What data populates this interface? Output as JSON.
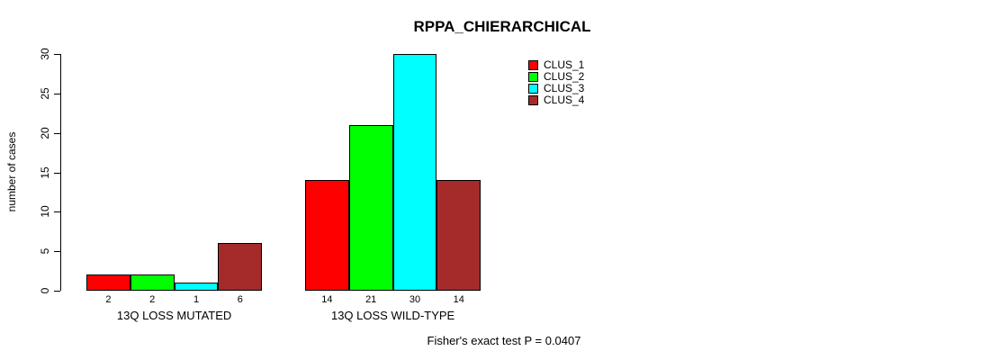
{
  "chart_data": {
    "type": "bar",
    "title": "RPPA_CHIERARCHICAL",
    "ylabel": "number of cases",
    "xlabel": "",
    "ylim": [
      0,
      30
    ],
    "yticks": [
      0,
      5,
      10,
      15,
      20,
      25,
      30
    ],
    "grid": false,
    "legend_position": "top-right",
    "bar_value_labels_shown": true,
    "categories": [
      "13Q LOSS MUTATED",
      "13Q LOSS WILD-TYPE"
    ],
    "groups": [
      {
        "label": "13Q LOSS MUTATED",
        "values": [
          2,
          2,
          1,
          6
        ]
      },
      {
        "label": "13Q LOSS WILD-TYPE",
        "values": [
          14,
          21,
          30,
          14
        ]
      }
    ],
    "series": [
      {
        "name": "CLUS_1",
        "color": "#FF0000",
        "values": [
          2,
          14
        ]
      },
      {
        "name": "CLUS_2",
        "color": "#00FF00",
        "values": [
          2,
          21
        ]
      },
      {
        "name": "CLUS_3",
        "color": "#00FFFF",
        "values": [
          1,
          30
        ]
      },
      {
        "name": "CLUS_4",
        "color": "#A52A2A",
        "values": [
          6,
          14
        ]
      }
    ],
    "annotation": "Fisher's exact test P = 0.0407"
  }
}
